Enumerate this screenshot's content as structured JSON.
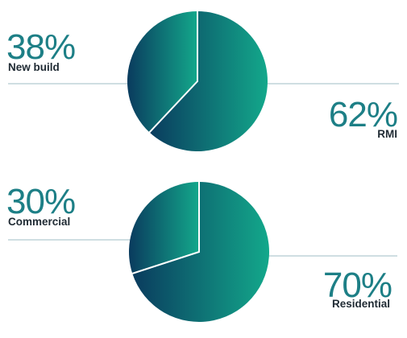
{
  "colors": {
    "gradient_start": "#0a3b5e",
    "gradient_end": "#13a88b",
    "percent_text": "#1d7f86",
    "label_text": "#1f2a33",
    "leader_line": "#9fbcc6",
    "separator": "#ffffff"
  },
  "chart_data": [
    {
      "type": "pie",
      "slices": [
        {
          "label": "New build",
          "value": 38,
          "display": "38%"
        },
        {
          "label": "RMI",
          "value": 62,
          "display": "62%"
        }
      ]
    },
    {
      "type": "pie",
      "slices": [
        {
          "label": "Commercial",
          "value": 30,
          "display": "30%"
        },
        {
          "label": "Residential",
          "value": 70,
          "display": "70%"
        }
      ]
    }
  ]
}
